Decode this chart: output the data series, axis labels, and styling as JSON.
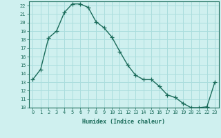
{
  "xlabel": "Humidex (Indice chaleur)",
  "x": [
    0,
    1,
    2,
    3,
    4,
    5,
    6,
    7,
    8,
    9,
    10,
    11,
    12,
    13,
    14,
    15,
    16,
    17,
    18,
    19,
    20,
    21,
    22,
    23
  ],
  "y": [
    13.3,
    14.5,
    18.2,
    19.0,
    21.2,
    22.2,
    22.2,
    21.8,
    20.1,
    19.4,
    18.3,
    16.6,
    15.0,
    13.8,
    13.3,
    13.3,
    12.5,
    11.5,
    11.2,
    10.5,
    10.0,
    10.0,
    10.1,
    13.0
  ],
  "line_color": "#1a6b5a",
  "marker": "+",
  "marker_size": 4,
  "line_width": 1.0,
  "bg_color": "#cff0ef",
  "grid_major_color": "#aadddd",
  "grid_minor_color": "#ddf5f5",
  "tick_color": "#1a6b5a",
  "label_color": "#1a6b5a",
  "ylim": [
    10,
    22.5
  ],
  "xlim": [
    -0.5,
    23.5
  ],
  "yticks": [
    10,
    11,
    12,
    13,
    14,
    15,
    16,
    17,
    18,
    19,
    20,
    21,
    22
  ],
  "xticks": [
    0,
    1,
    2,
    3,
    4,
    5,
    6,
    7,
    8,
    9,
    10,
    11,
    12,
    13,
    14,
    15,
    16,
    17,
    18,
    19,
    20,
    21,
    22,
    23
  ],
  "tick_fontsize": 5.0,
  "xlabel_fontsize": 6.0
}
